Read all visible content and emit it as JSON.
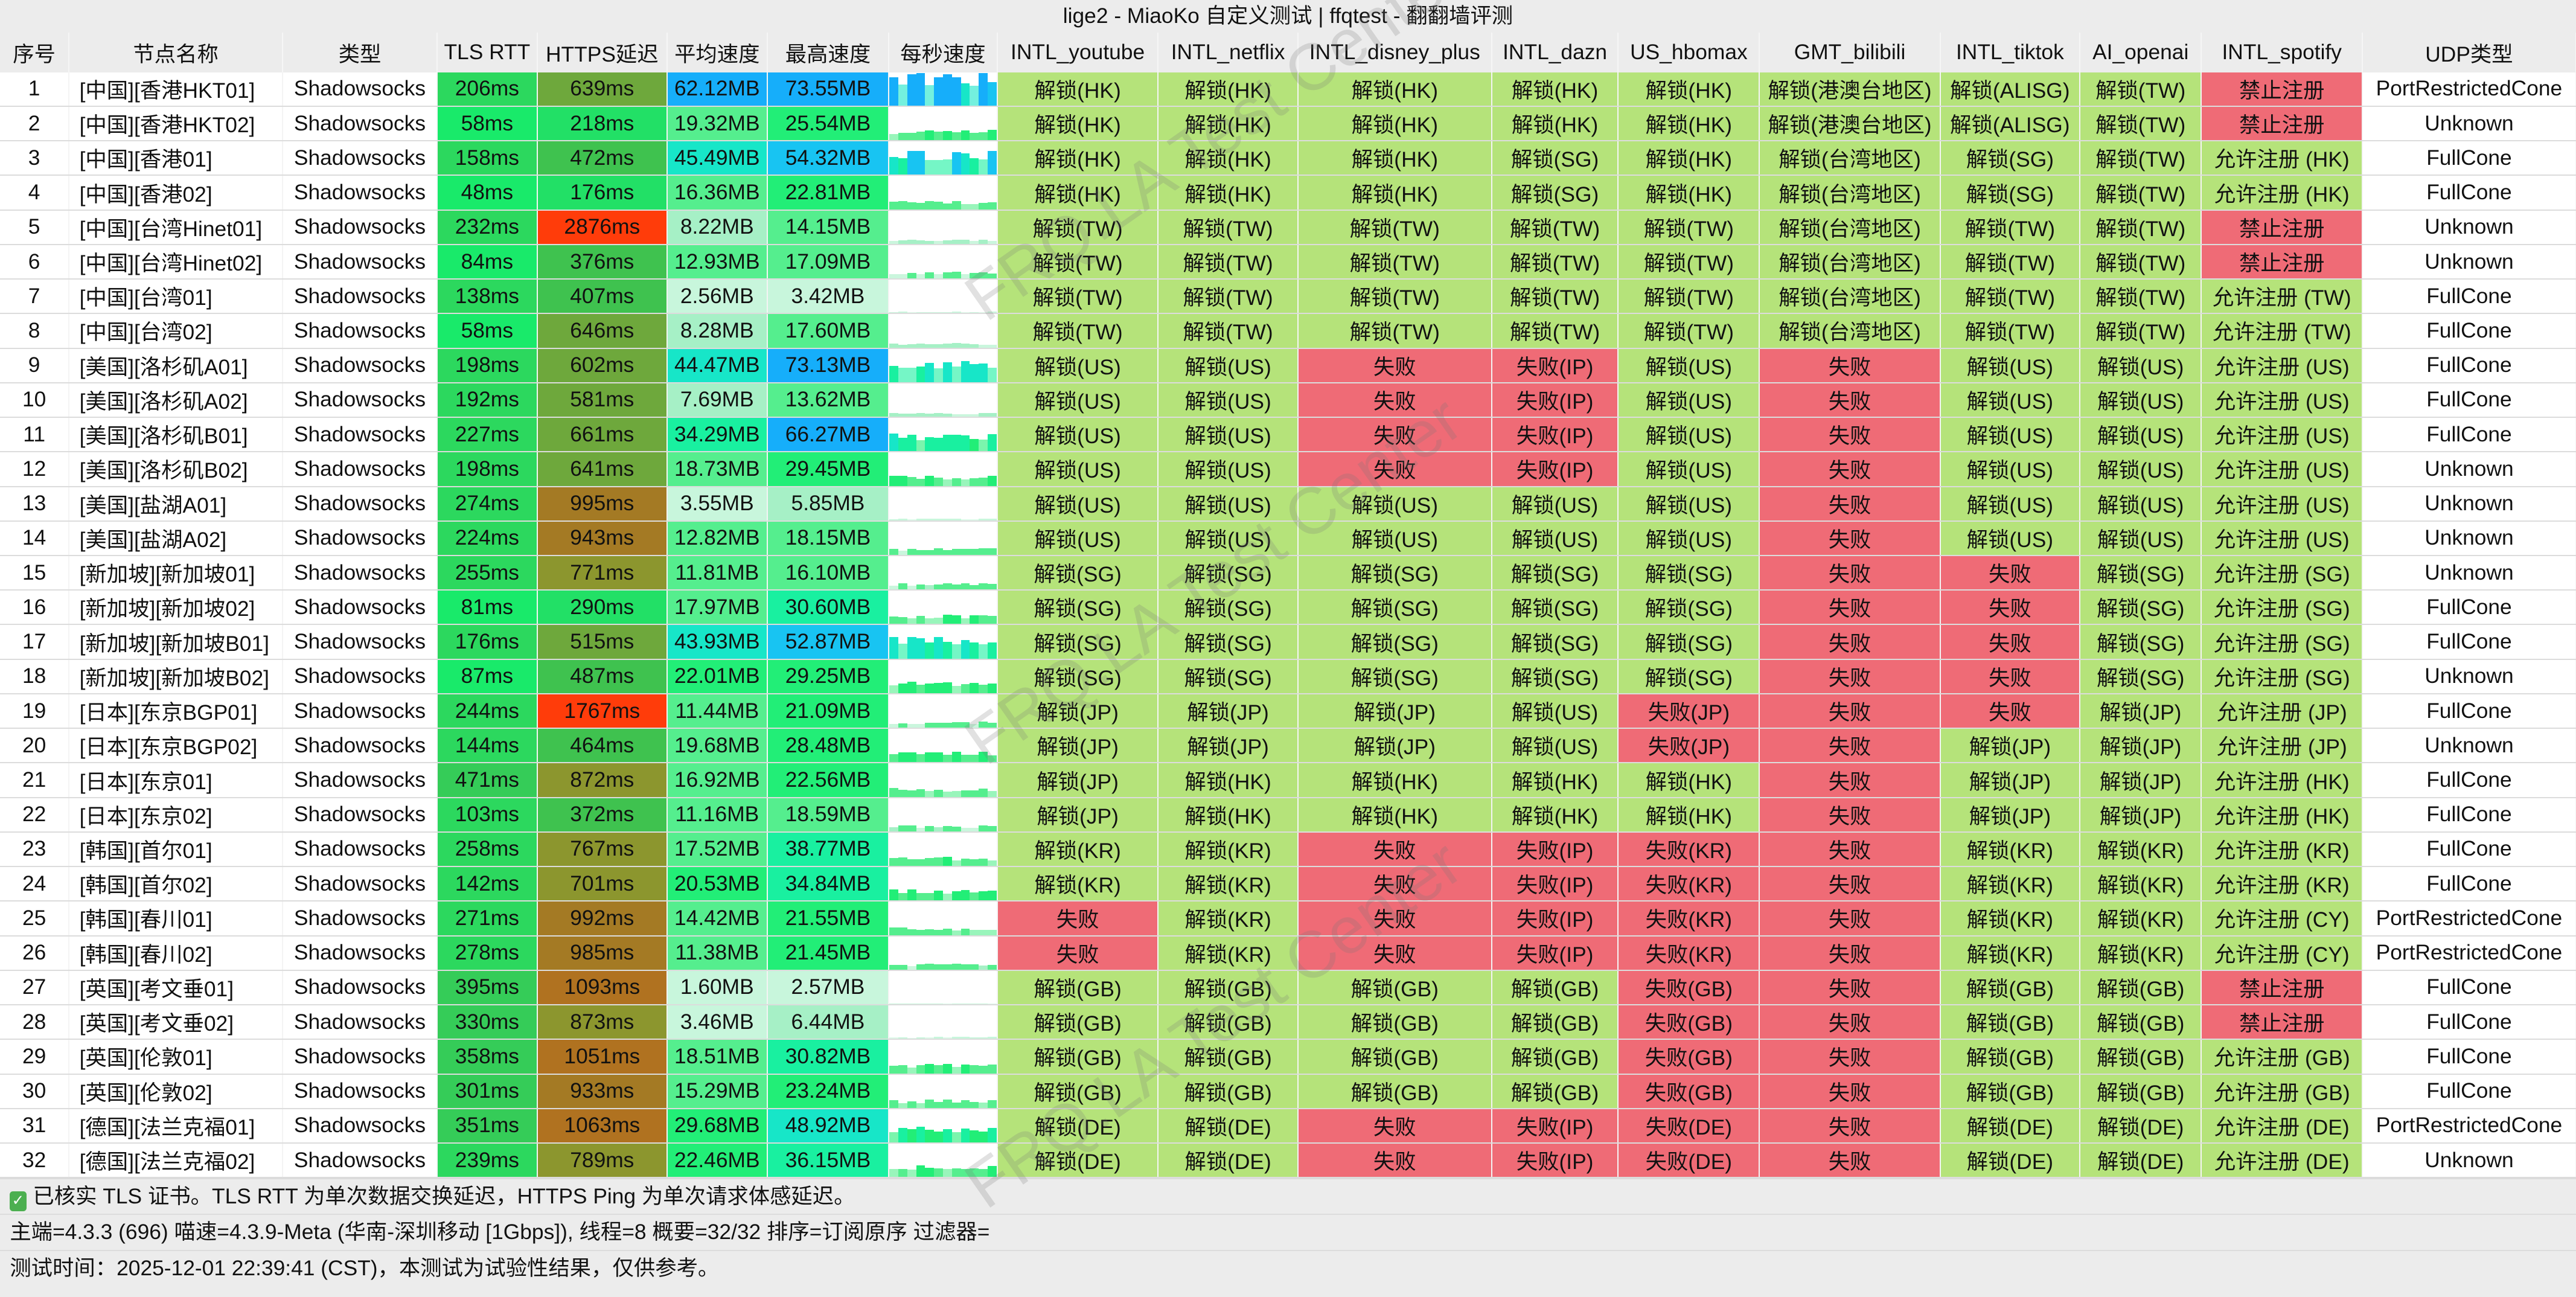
{
  "window": {
    "title": "lige2 - MiaoKo 自定义测试 | ffqtest - 翻翻墙评测"
  },
  "watermark": "FRQ.LA Test Center",
  "colors": {
    "unlock_ok": "#b5e37a",
    "unlock_fail": "#ef6b76",
    "https_slow": "#ff3c0a",
    "speed_fast": "#16aefa"
  },
  "columns": [
    "序号",
    "节点名称",
    "类型",
    "TLS RTT",
    "HTTPS延迟",
    "平均速度",
    "最高速度",
    "每秒速度",
    "INTL_youtube",
    "INTL_netflix",
    "INTL_disney_plus",
    "INTL_dazn",
    "US_hbomax",
    "GMT_bilibili",
    "INTL_tiktok",
    "AI_openai",
    "INTL_spotify",
    "UDP类型"
  ],
  "rows": [
    [
      "1",
      "[中国][香港HKT01]",
      "Shadowsocks",
      "206ms",
      "639ms",
      "62.12MB",
      "73.55MB",
      "解锁(HK)",
      "解锁(HK)",
      "解锁(HK)",
      "解锁(HK)",
      "解锁(HK)",
      "解锁(港澳台地区)",
      "解锁(ALISG)",
      "解锁(TW)",
      "禁止注册",
      "PortRestrictedCone"
    ],
    [
      "2",
      "[中国][香港HKT02]",
      "Shadowsocks",
      "58ms",
      "218ms",
      "19.32MB",
      "25.54MB",
      "解锁(HK)",
      "解锁(HK)",
      "解锁(HK)",
      "解锁(HK)",
      "解锁(HK)",
      "解锁(港澳台地区)",
      "解锁(ALISG)",
      "解锁(TW)",
      "禁止注册",
      "Unknown"
    ],
    [
      "3",
      "[中国][香港01]",
      "Shadowsocks",
      "158ms",
      "472ms",
      "45.49MB",
      "54.32MB",
      "解锁(HK)",
      "解锁(HK)",
      "解锁(HK)",
      "解锁(SG)",
      "解锁(HK)",
      "解锁(台湾地区)",
      "解锁(SG)",
      "解锁(TW)",
      "允许注册 (HK)",
      "FullCone"
    ],
    [
      "4",
      "[中国][香港02]",
      "Shadowsocks",
      "48ms",
      "176ms",
      "16.36MB",
      "22.81MB",
      "解锁(HK)",
      "解锁(HK)",
      "解锁(HK)",
      "解锁(SG)",
      "解锁(HK)",
      "解锁(台湾地区)",
      "解锁(SG)",
      "解锁(TW)",
      "允许注册 (HK)",
      "FullCone"
    ],
    [
      "5",
      "[中国][台湾Hinet01]",
      "Shadowsocks",
      "232ms",
      "2876ms",
      "8.22MB",
      "14.15MB",
      "解锁(TW)",
      "解锁(TW)",
      "解锁(TW)",
      "解锁(TW)",
      "解锁(TW)",
      "解锁(台湾地区)",
      "解锁(TW)",
      "解锁(TW)",
      "禁止注册",
      "Unknown"
    ],
    [
      "6",
      "[中国][台湾Hinet02]",
      "Shadowsocks",
      "84ms",
      "376ms",
      "12.93MB",
      "17.09MB",
      "解锁(TW)",
      "解锁(TW)",
      "解锁(TW)",
      "解锁(TW)",
      "解锁(TW)",
      "解锁(台湾地区)",
      "解锁(TW)",
      "解锁(TW)",
      "禁止注册",
      "Unknown"
    ],
    [
      "7",
      "[中国][台湾01]",
      "Shadowsocks",
      "138ms",
      "407ms",
      "2.56MB",
      "3.42MB",
      "解锁(TW)",
      "解锁(TW)",
      "解锁(TW)",
      "解锁(TW)",
      "解锁(TW)",
      "解锁(台湾地区)",
      "解锁(TW)",
      "解锁(TW)",
      "允许注册 (TW)",
      "FullCone"
    ],
    [
      "8",
      "[中国][台湾02]",
      "Shadowsocks",
      "58ms",
      "646ms",
      "8.28MB",
      "17.60MB",
      "解锁(TW)",
      "解锁(TW)",
      "解锁(TW)",
      "解锁(TW)",
      "解锁(TW)",
      "解锁(台湾地区)",
      "解锁(TW)",
      "解锁(TW)",
      "允许注册 (TW)",
      "FullCone"
    ],
    [
      "9",
      "[美国][洛杉矶A01]",
      "Shadowsocks",
      "198ms",
      "602ms",
      "44.47MB",
      "73.13MB",
      "解锁(US)",
      "解锁(US)",
      "失败",
      "失败(IP)",
      "解锁(US)",
      "失败",
      "解锁(US)",
      "解锁(US)",
      "允许注册 (US)",
      "FullCone"
    ],
    [
      "10",
      "[美国][洛杉矶A02]",
      "Shadowsocks",
      "192ms",
      "581ms",
      "7.69MB",
      "13.62MB",
      "解锁(US)",
      "解锁(US)",
      "失败",
      "失败(IP)",
      "解锁(US)",
      "失败",
      "解锁(US)",
      "解锁(US)",
      "允许注册 (US)",
      "FullCone"
    ],
    [
      "11",
      "[美国][洛杉矶B01]",
      "Shadowsocks",
      "227ms",
      "661ms",
      "34.29MB",
      "66.27MB",
      "解锁(US)",
      "解锁(US)",
      "失败",
      "失败(IP)",
      "解锁(US)",
      "失败",
      "解锁(US)",
      "解锁(US)",
      "允许注册 (US)",
      "FullCone"
    ],
    [
      "12",
      "[美国][洛杉矶B02]",
      "Shadowsocks",
      "198ms",
      "641ms",
      "18.73MB",
      "29.45MB",
      "解锁(US)",
      "解锁(US)",
      "失败",
      "失败(IP)",
      "解锁(US)",
      "失败",
      "解锁(US)",
      "解锁(US)",
      "允许注册 (US)",
      "Unknown"
    ],
    [
      "13",
      "[美国][盐湖A01]",
      "Shadowsocks",
      "274ms",
      "995ms",
      "3.55MB",
      "5.85MB",
      "解锁(US)",
      "解锁(US)",
      "解锁(US)",
      "解锁(US)",
      "解锁(US)",
      "失败",
      "解锁(US)",
      "解锁(US)",
      "允许注册 (US)",
      "Unknown"
    ],
    [
      "14",
      "[美国][盐湖A02]",
      "Shadowsocks",
      "224ms",
      "943ms",
      "12.82MB",
      "18.15MB",
      "解锁(US)",
      "解锁(US)",
      "解锁(US)",
      "解锁(US)",
      "解锁(US)",
      "失败",
      "解锁(US)",
      "解锁(US)",
      "允许注册 (US)",
      "Unknown"
    ],
    [
      "15",
      "[新加坡][新加坡01]",
      "Shadowsocks",
      "255ms",
      "771ms",
      "11.81MB",
      "16.10MB",
      "解锁(SG)",
      "解锁(SG)",
      "解锁(SG)",
      "解锁(SG)",
      "解锁(SG)",
      "失败",
      "失败",
      "解锁(SG)",
      "允许注册 (SG)",
      "Unknown"
    ],
    [
      "16",
      "[新加坡][新加坡02]",
      "Shadowsocks",
      "81ms",
      "290ms",
      "17.97MB",
      "30.60MB",
      "解锁(SG)",
      "解锁(SG)",
      "解锁(SG)",
      "解锁(SG)",
      "解锁(SG)",
      "失败",
      "失败",
      "解锁(SG)",
      "允许注册 (SG)",
      "FullCone"
    ],
    [
      "17",
      "[新加坡][新加坡B01]",
      "Shadowsocks",
      "176ms",
      "515ms",
      "43.93MB",
      "52.87MB",
      "解锁(SG)",
      "解锁(SG)",
      "解锁(SG)",
      "解锁(SG)",
      "解锁(SG)",
      "失败",
      "失败",
      "解锁(SG)",
      "允许注册 (SG)",
      "FullCone"
    ],
    [
      "18",
      "[新加坡][新加坡B02]",
      "Shadowsocks",
      "87ms",
      "487ms",
      "22.01MB",
      "29.25MB",
      "解锁(SG)",
      "解锁(SG)",
      "解锁(SG)",
      "解锁(SG)",
      "解锁(SG)",
      "失败",
      "失败",
      "解锁(SG)",
      "允许注册 (SG)",
      "Unknown"
    ],
    [
      "19",
      "[日本][东京BGP01]",
      "Shadowsocks",
      "244ms",
      "1767ms",
      "11.44MB",
      "21.09MB",
      "解锁(JP)",
      "解锁(JP)",
      "解锁(JP)",
      "解锁(US)",
      "失败(JP)",
      "失败",
      "失败",
      "解锁(JP)",
      "允许注册 (JP)",
      "FullCone"
    ],
    [
      "20",
      "[日本][东京BGP02]",
      "Shadowsocks",
      "144ms",
      "464ms",
      "19.68MB",
      "28.48MB",
      "解锁(JP)",
      "解锁(JP)",
      "解锁(JP)",
      "解锁(US)",
      "失败(JP)",
      "失败",
      "解锁(JP)",
      "解锁(JP)",
      "允许注册 (JP)",
      "Unknown"
    ],
    [
      "21",
      "[日本][东京01]",
      "Shadowsocks",
      "471ms",
      "872ms",
      "16.92MB",
      "22.56MB",
      "解锁(JP)",
      "解锁(HK)",
      "解锁(HK)",
      "解锁(HK)",
      "解锁(HK)",
      "失败",
      "解锁(JP)",
      "解锁(JP)",
      "允许注册 (HK)",
      "FullCone"
    ],
    [
      "22",
      "[日本][东京02]",
      "Shadowsocks",
      "103ms",
      "372ms",
      "11.16MB",
      "18.59MB",
      "解锁(JP)",
      "解锁(HK)",
      "解锁(HK)",
      "解锁(HK)",
      "解锁(HK)",
      "失败",
      "解锁(JP)",
      "解锁(JP)",
      "允许注册 (HK)",
      "FullCone"
    ],
    [
      "23",
      "[韩国][首尔01]",
      "Shadowsocks",
      "258ms",
      "767ms",
      "17.52MB",
      "38.77MB",
      "解锁(KR)",
      "解锁(KR)",
      "失败",
      "失败(IP)",
      "失败(KR)",
      "失败",
      "解锁(KR)",
      "解锁(KR)",
      "允许注册 (KR)",
      "FullCone"
    ],
    [
      "24",
      "[韩国][首尔02]",
      "Shadowsocks",
      "142ms",
      "701ms",
      "20.53MB",
      "34.84MB",
      "解锁(KR)",
      "解锁(KR)",
      "失败",
      "失败(IP)",
      "失败(KR)",
      "失败",
      "解锁(KR)",
      "解锁(KR)",
      "允许注册 (KR)",
      "FullCone"
    ],
    [
      "25",
      "[韩国][春川01]",
      "Shadowsocks",
      "271ms",
      "992ms",
      "14.42MB",
      "21.55MB",
      "失败",
      "解锁(KR)",
      "失败",
      "失败(IP)",
      "失败(KR)",
      "失败",
      "解锁(KR)",
      "解锁(KR)",
      "允许注册 (CY)",
      "PortRestrictedCone"
    ],
    [
      "26",
      "[韩国][春川02]",
      "Shadowsocks",
      "278ms",
      "985ms",
      "11.38MB",
      "21.45MB",
      "失败",
      "解锁(KR)",
      "失败",
      "失败(IP)",
      "失败(KR)",
      "失败",
      "解锁(KR)",
      "解锁(KR)",
      "允许注册 (CY)",
      "PortRestrictedCone"
    ],
    [
      "27",
      "[英国][考文垂01]",
      "Shadowsocks",
      "395ms",
      "1093ms",
      "1.60MB",
      "2.57MB",
      "解锁(GB)",
      "解锁(GB)",
      "解锁(GB)",
      "解锁(GB)",
      "失败(GB)",
      "失败",
      "解锁(GB)",
      "解锁(GB)",
      "禁止注册",
      "FullCone"
    ],
    [
      "28",
      "[英国][考文垂02]",
      "Shadowsocks",
      "330ms",
      "873ms",
      "3.46MB",
      "6.44MB",
      "解锁(GB)",
      "解锁(GB)",
      "解锁(GB)",
      "解锁(GB)",
      "失败(GB)",
      "失败",
      "解锁(GB)",
      "解锁(GB)",
      "禁止注册",
      "FullCone"
    ],
    [
      "29",
      "[英国][伦敦01]",
      "Shadowsocks",
      "358ms",
      "1051ms",
      "18.51MB",
      "30.82MB",
      "解锁(GB)",
      "解锁(GB)",
      "解锁(GB)",
      "解锁(GB)",
      "失败(GB)",
      "失败",
      "解锁(GB)",
      "解锁(GB)",
      "允许注册 (GB)",
      "FullCone"
    ],
    [
      "30",
      "[英国][伦敦02]",
      "Shadowsocks",
      "301ms",
      "933ms",
      "15.29MB",
      "23.24MB",
      "解锁(GB)",
      "解锁(GB)",
      "解锁(GB)",
      "解锁(GB)",
      "失败(GB)",
      "失败",
      "解锁(GB)",
      "解锁(GB)",
      "允许注册 (GB)",
      "FullCone"
    ],
    [
      "31",
      "[德国][法兰克福01]",
      "Shadowsocks",
      "351ms",
      "1063ms",
      "29.68MB",
      "48.92MB",
      "解锁(DE)",
      "解锁(DE)",
      "失败",
      "失败(IP)",
      "失败(DE)",
      "失败",
      "解锁(DE)",
      "解锁(DE)",
      "允许注册 (DE)",
      "PortRestrictedCone"
    ],
    [
      "32",
      "[德国][法兰克福02]",
      "Shadowsocks",
      "239ms",
      "789ms",
      "22.46MB",
      "36.15MB",
      "解锁(DE)",
      "解锁(DE)",
      "失败",
      "失败(IP)",
      "失败(DE)",
      "失败",
      "解锁(DE)",
      "解锁(DE)",
      "允许注册 (DE)",
      "Unknown"
    ]
  ],
  "footer": {
    "tls_note": "已核实 TLS 证书。TLS RTT 为单次数据交换延迟，HTTPS Ping 为单次请求体感延迟。",
    "summary": "主端=4.3.3 (696) 喵速=4.3.9-Meta (华南-深圳移动 [1Gbps]), 线程=8 概要=32/32 排序=订阅原序 过滤器=",
    "test_time": "测试时间：2025-12-01 22:39:41 (CST)，本测试为试验性结果，仅供参考。"
  }
}
